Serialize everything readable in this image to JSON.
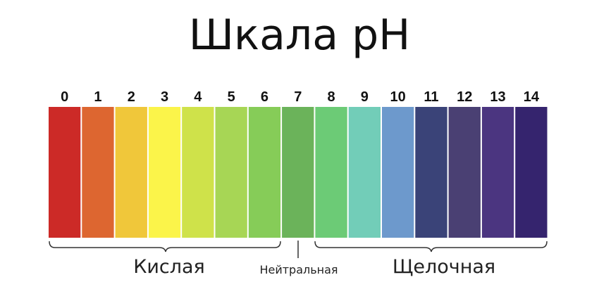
{
  "title": "Шкала pH",
  "scale": [
    {
      "label": "0",
      "color": "#cc2a27"
    },
    {
      "label": "1",
      "color": "#dd6630"
    },
    {
      "label": "2",
      "color": "#f0c73a"
    },
    {
      "label": "3",
      "color": "#fbf44a"
    },
    {
      "label": "4",
      "color": "#cfe24a"
    },
    {
      "label": "5",
      "color": "#a7d655"
    },
    {
      "label": "6",
      "color": "#86cc58"
    },
    {
      "label": "7",
      "color": "#6bb35a"
    },
    {
      "label": "8",
      "color": "#6ccb76"
    },
    {
      "label": "9",
      "color": "#72cdb8"
    },
    {
      "label": "10",
      "color": "#6d99cc"
    },
    {
      "label": "11",
      "color": "#3a4378"
    },
    {
      "label": "12",
      "color": "#4a4073"
    },
    {
      "label": "13",
      "color": "#4b3580"
    },
    {
      "label": "14",
      "color": "#35246e"
    }
  ],
  "groups": {
    "acidic": "Кислая",
    "neutral": "Нейтральная",
    "alkaline": "Щелочная"
  }
}
